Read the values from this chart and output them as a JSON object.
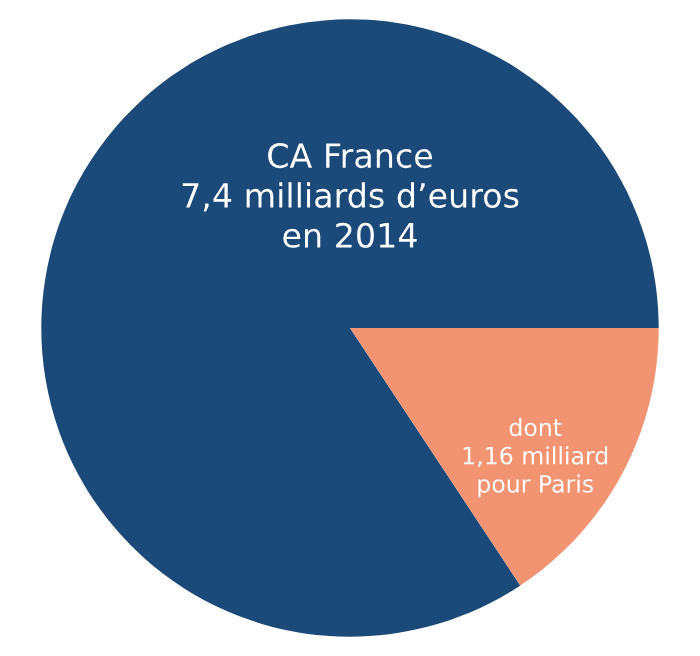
{
  "chart_data": {
    "type": "pie",
    "categories": [
      "CA France\n7,4 milliards d’euros\nen 2014",
      "dont\n1,16 milliard\npour Paris"
    ],
    "values": [
      84.3,
      15.7
    ],
    "colors": [
      "#1b4a7a",
      "#f29472"
    ]
  }
}
